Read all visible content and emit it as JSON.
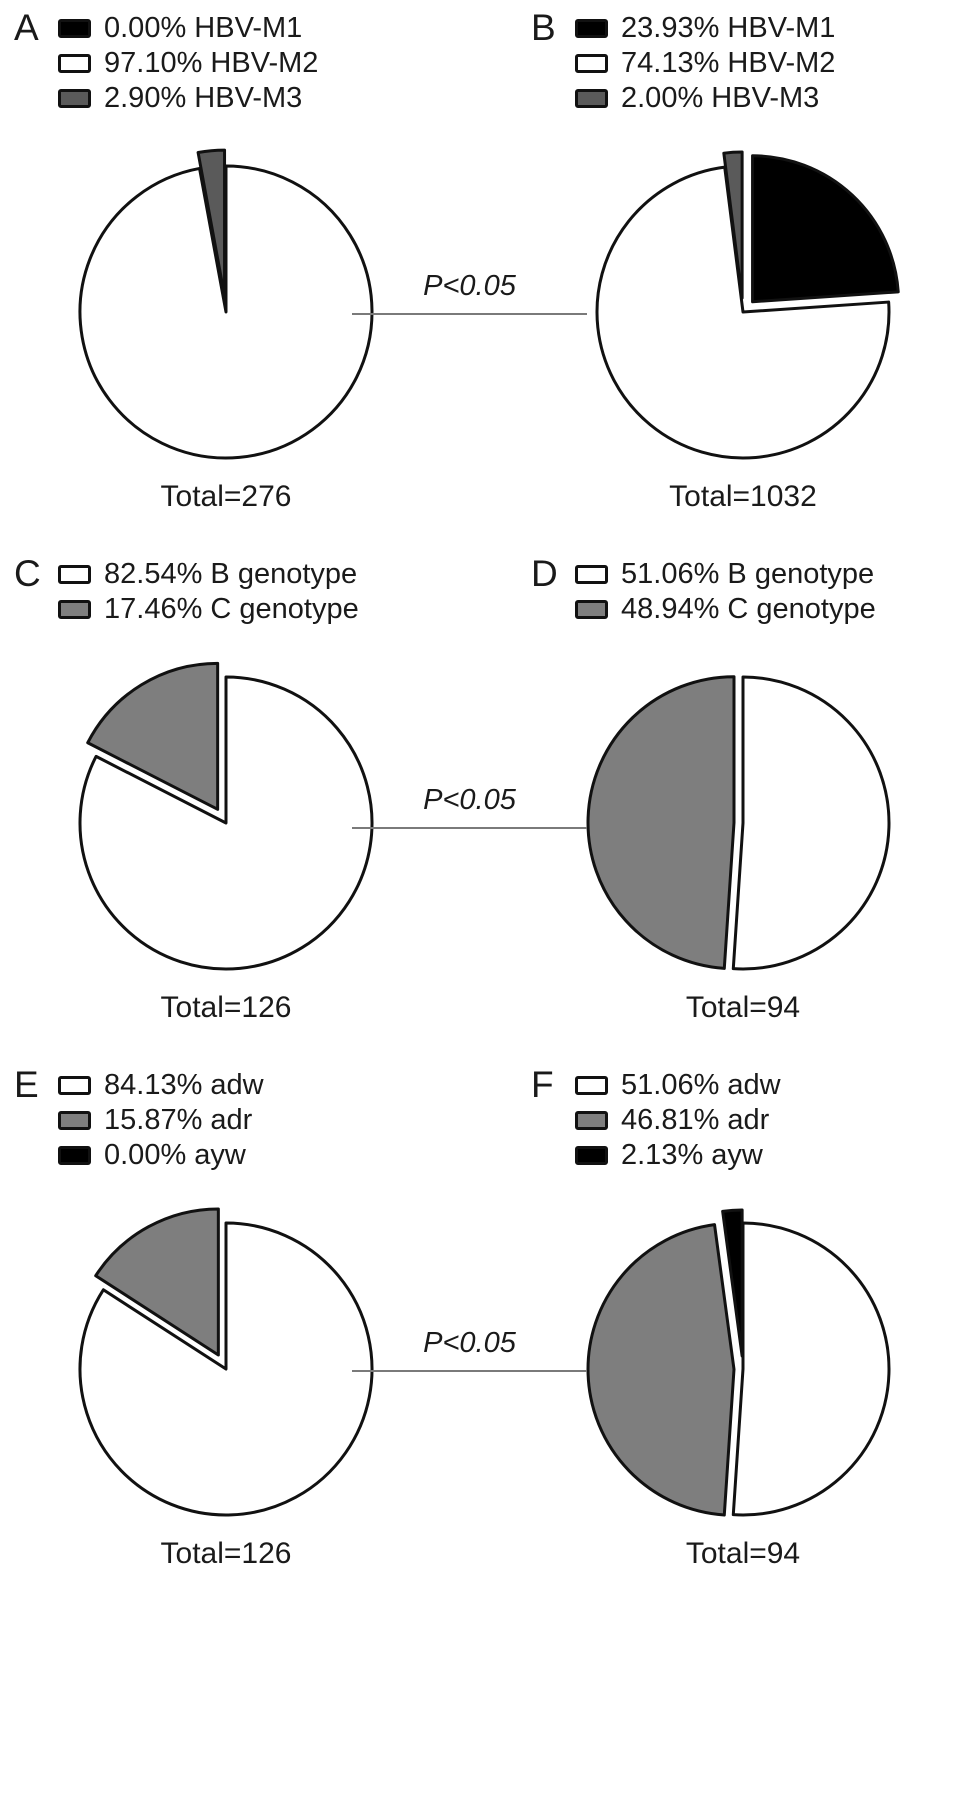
{
  "connectors": [
    {
      "label": "P<0.05"
    },
    {
      "label": "P<0.05"
    },
    {
      "label": "P<0.05"
    }
  ],
  "chart_data": [
    {
      "type": "pie",
      "panel": "A",
      "total_label": "Total=276",
      "legend_position": "top",
      "slices": [
        {
          "label": "HBV-M1",
          "value": 0.0,
          "percent_label": "0.00% HBV-M1",
          "color": "#000000",
          "exploded": false,
          "offset": 0
        },
        {
          "label": "HBV-M2",
          "value": 97.1,
          "percent_label": "97.10% HBV-M2",
          "color": "#ffffff",
          "exploded": false,
          "offset": 0
        },
        {
          "label": "HBV-M3",
          "value": 2.9,
          "percent_label": "2.90% HBV-M3",
          "color": "#5a5a5a",
          "exploded": true,
          "offset": 16
        }
      ]
    },
    {
      "type": "pie",
      "panel": "B",
      "total_label": "Total=1032",
      "legend_position": "top",
      "slices": [
        {
          "label": "HBV-M1",
          "value": 23.93,
          "percent_label": "23.93% HBV-M1",
          "color": "#000000",
          "exploded": true,
          "offset": 14
        },
        {
          "label": "HBV-M2",
          "value": 74.13,
          "percent_label": "74.13% HBV-M2",
          "color": "#ffffff",
          "exploded": false,
          "offset": 0
        },
        {
          "label": "HBV-M3",
          "value": 2.0,
          "percent_label": "2.00% HBV-M3",
          "color": "#5a5a5a",
          "exploded": true,
          "offset": 14
        }
      ]
    },
    {
      "type": "pie",
      "panel": "C",
      "total_label": "Total=126",
      "legend_position": "top",
      "slices": [
        {
          "label": "B genotype",
          "value": 82.54,
          "percent_label": "82.54% B genotype",
          "color": "#ffffff",
          "exploded": false,
          "offset": 0
        },
        {
          "label": "C genotype",
          "value": 17.46,
          "percent_label": "17.46% C genotype",
          "color": "#7e7e7e",
          "exploded": true,
          "offset": 16
        }
      ]
    },
    {
      "type": "pie",
      "panel": "D",
      "total_label": "Total=94",
      "legend_position": "top",
      "slices": [
        {
          "label": "B genotype",
          "value": 51.06,
          "percent_label": "51.06% B genotype",
          "color": "#ffffff",
          "exploded": false,
          "offset": 0
        },
        {
          "label": "C genotype",
          "value": 48.94,
          "percent_label": "48.94% C genotype",
          "color": "#7e7e7e",
          "exploded": true,
          "offset": 9
        }
      ]
    },
    {
      "type": "pie",
      "panel": "E",
      "total_label": "Total=126",
      "legend_position": "top",
      "slices": [
        {
          "label": "adw",
          "value": 84.13,
          "percent_label": "84.13% adw",
          "color": "#ffffff",
          "exploded": false,
          "offset": 0
        },
        {
          "label": "adr",
          "value": 15.87,
          "percent_label": "15.87% adr",
          "color": "#7e7e7e",
          "exploded": true,
          "offset": 16
        },
        {
          "label": "ayw",
          "value": 0.0,
          "percent_label": "0.00% ayw",
          "color": "#000000",
          "exploded": false,
          "offset": 0
        }
      ]
    },
    {
      "type": "pie",
      "panel": "F",
      "total_label": "Total=94",
      "legend_position": "top",
      "slices": [
        {
          "label": "adw",
          "value": 51.06,
          "percent_label": "51.06% adw",
          "color": "#ffffff",
          "exploded": false,
          "offset": 0
        },
        {
          "label": "adr",
          "value": 46.81,
          "percent_label": "46.81% adr",
          "color": "#7e7e7e",
          "exploded": true,
          "offset": 9
        },
        {
          "label": "ayw",
          "value": 2.13,
          "percent_label": "2.13% ayw",
          "color": "#000000",
          "exploded": true,
          "offset": 13
        }
      ]
    }
  ]
}
